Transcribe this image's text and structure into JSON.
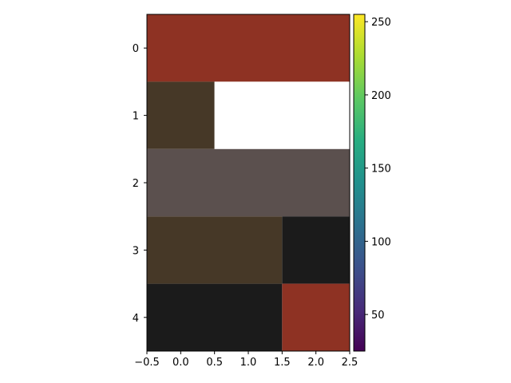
{
  "chart_data": {
    "type": "heatmap",
    "title": "",
    "xlabel": "",
    "ylabel": "",
    "x_range": [
      -0.5,
      2.5
    ],
    "y_range": [
      -0.5,
      4.5
    ],
    "y_inverted": true,
    "x_ticks": [
      -0.5,
      0.0,
      0.5,
      1.0,
      1.5,
      2.0,
      2.5
    ],
    "x_tick_labels": [
      "−0.5",
      "0.0",
      "0.5",
      "1.0",
      "1.5",
      "2.0",
      "2.5"
    ],
    "y_ticks": [
      0,
      1,
      2,
      3,
      4
    ],
    "y_tick_labels": [
      "0",
      "1",
      "2",
      "3",
      "4"
    ],
    "cells": [
      {
        "row": 0,
        "x0": -0.5,
        "x1": 2.5,
        "color": "#8e3223"
      },
      {
        "row": 1,
        "x0": -0.5,
        "x1": 0.5,
        "color": "#463827"
      },
      {
        "row": 1,
        "x0": 0.5,
        "x1": 2.5,
        "color": "#ffffff"
      },
      {
        "row": 2,
        "x0": -0.5,
        "x1": 2.5,
        "color": "#5b504e"
      },
      {
        "row": 3,
        "x0": -0.5,
        "x1": 1.5,
        "color": "#463827"
      },
      {
        "row": 3,
        "x0": 1.5,
        "x1": 2.5,
        "color": "#1b1b1b"
      },
      {
        "row": 4,
        "x0": -0.5,
        "x1": 1.5,
        "color": "#1b1b1b"
      },
      {
        "row": 4,
        "x0": 1.5,
        "x1": 2.5,
        "color": "#8e3223"
      }
    ],
    "colorbar": {
      "colormap": "viridis",
      "range": [
        25,
        255
      ],
      "ticks": [
        50,
        100,
        150,
        200,
        250
      ],
      "tick_labels": [
        "50",
        "100",
        "150",
        "200",
        "250"
      ]
    }
  }
}
